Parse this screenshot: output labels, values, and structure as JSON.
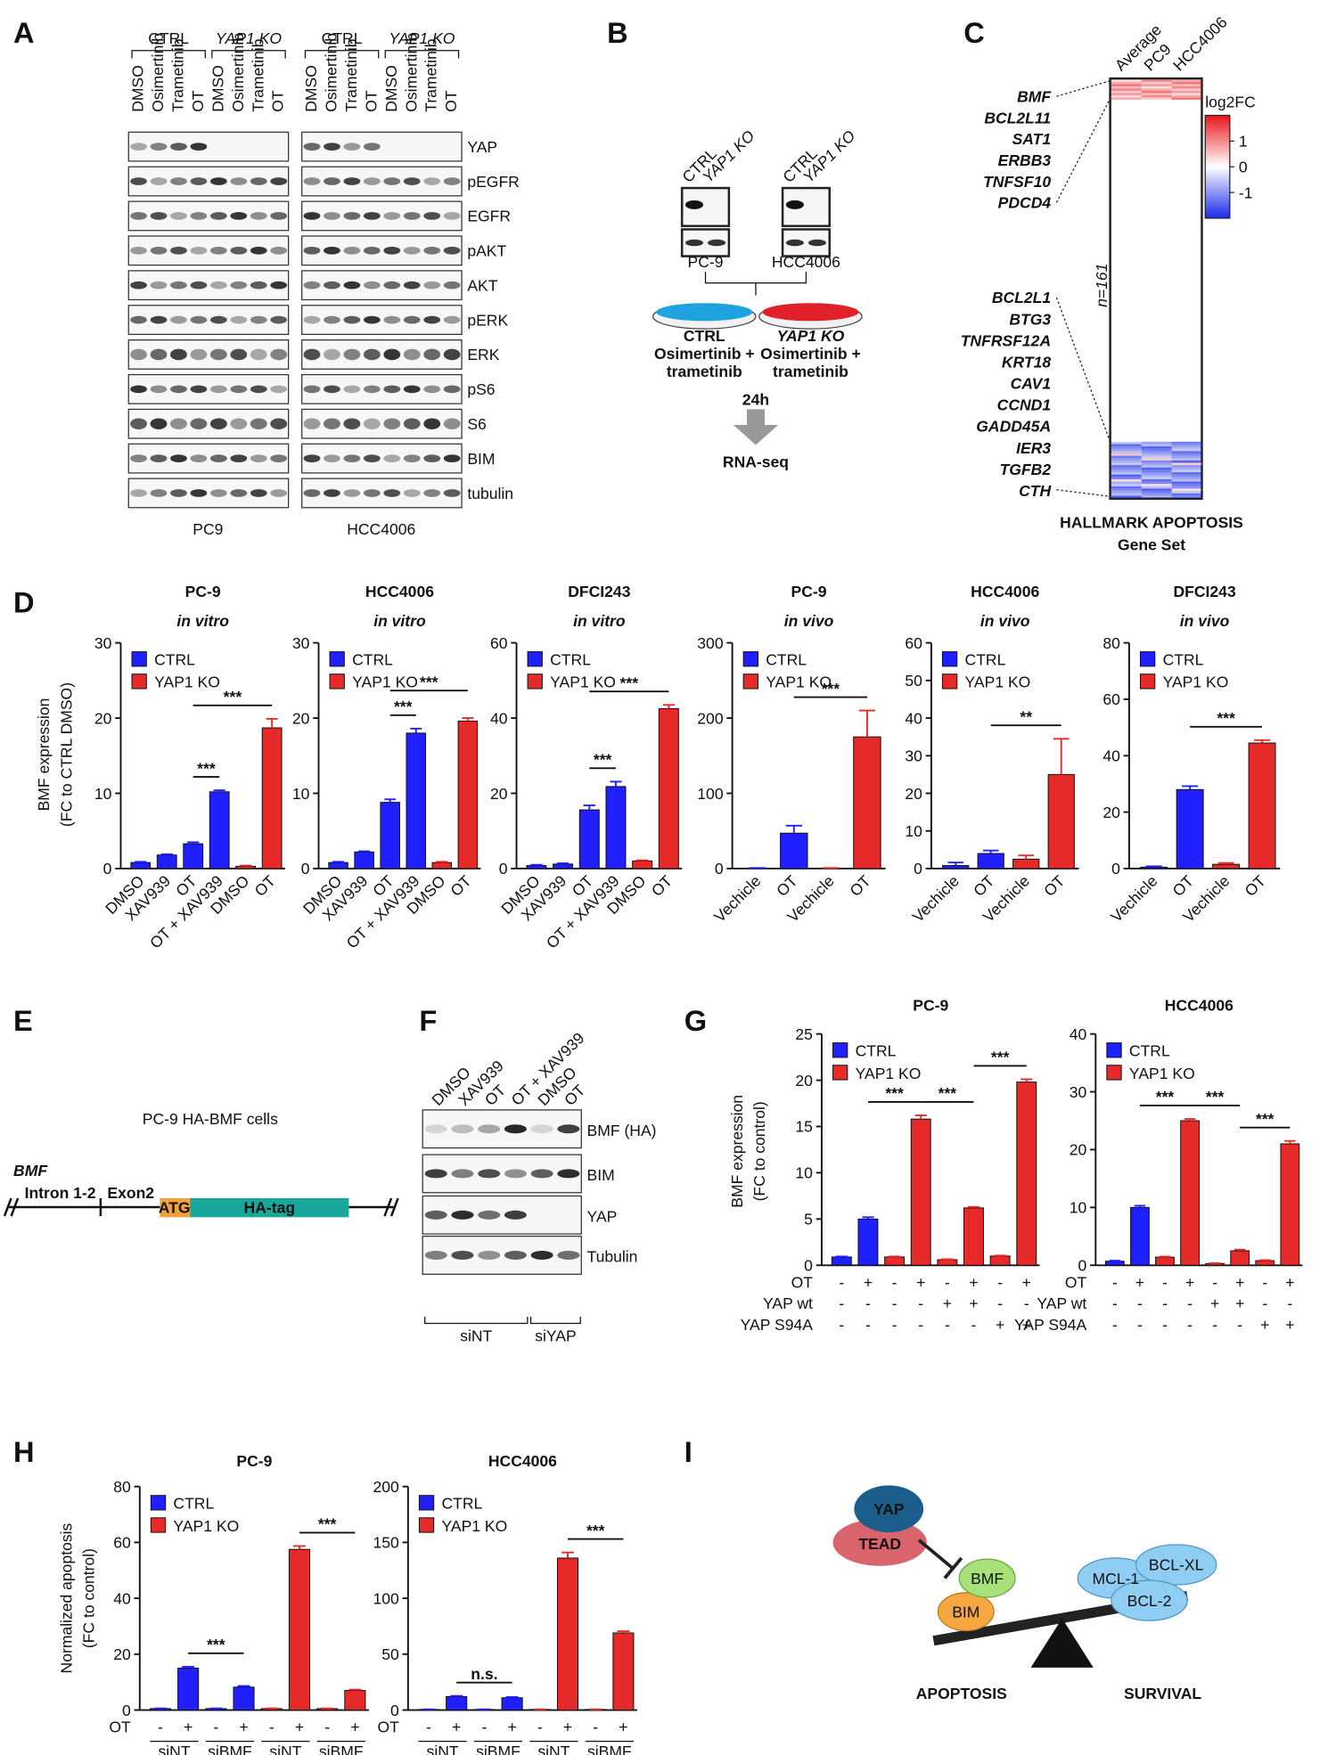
{
  "panel_labels": [
    "A",
    "B",
    "C",
    "D",
    "E",
    "F",
    "G",
    "H",
    "I"
  ],
  "panel_a": {
    "groups": [
      "CTRL",
      "YAP1 KO"
    ],
    "lanes": [
      "DMSO",
      "Osimertinib",
      "Trametinib",
      "OT"
    ],
    "proteins": [
      "YAP",
      "pEGFR",
      "EGFR",
      "pAKT",
      "AKT",
      "pERK",
      "ERK",
      "pS6",
      "S6",
      "BIM",
      "tubulin"
    ],
    "cell_lines": [
      "PC9",
      "HCC4006"
    ]
  },
  "panel_b": {
    "lanes": [
      "CTRL",
      "YAP1 KO"
    ],
    "cell_lines": [
      "PC-9",
      "HCC4006"
    ],
    "conditions": [
      {
        "group": "CTRL",
        "treatment": [
          "Osimertinib +",
          "trametinib"
        ]
      },
      {
        "group": "YAP1 KO",
        "treatment": [
          "Osimertinib +",
          "trametinib"
        ]
      }
    ],
    "time": "24h",
    "assay": "RNA-seq"
  },
  "panel_c": {
    "columns": [
      "Average",
      "PC9",
      "HCC4006"
    ],
    "genes_top": [
      "BMF",
      "BCL2L11",
      "SAT1",
      "ERBB3",
      "TNFSF10",
      "PDCD4"
    ],
    "genes_bottom": [
      "BCL2L1",
      "BTG3",
      "TNFRSF12A",
      "KRT18",
      "CAV1",
      "CCND1",
      "GADD45A",
      "IER3",
      "TGFB2",
      "CTH"
    ],
    "legend_title": "log2FC",
    "legend_lim": [
      -2,
      2
    ],
    "legend_ticks": [
      1,
      0,
      -1
    ],
    "n": "n=161",
    "caption": [
      "HALLMARK APOPTOSIS",
      "Gene Set"
    ]
  },
  "panel_e": {
    "title": "PC-9 HA-BMF cells",
    "gene": "BMF",
    "segments": [
      "Intron 1-2",
      "Exon2",
      "ATG",
      "HA-tag"
    ]
  },
  "panel_f": {
    "lanes": [
      "DMSO",
      "XAV939",
      "OT",
      "OT + XAV939",
      "DMSO",
      "OT"
    ],
    "proteins": [
      "BMF (HA)",
      "BIM",
      "YAP",
      "Tubulin"
    ],
    "groups": [
      "siNT",
      "siYAP"
    ]
  },
  "panel_i": {
    "nodes": [
      "YAP",
      "TEAD",
      "BMF",
      "BIM",
      "MCL-1",
      "BCL-XL",
      "BCL-2"
    ],
    "labels": [
      "APOPTOSIS",
      "SURVIVAL"
    ]
  },
  "chart_data": [
    {
      "type": "bar",
      "title": "PC-9",
      "subtitle": "in vitro",
      "ylabel": [
        "BMF expression",
        "(FC to CTRL DMSO)"
      ],
      "categories": [
        "DMSO",
        "XAV939",
        "OT",
        "OT + XAV939",
        "DMSO",
        "OT"
      ],
      "series": [
        {
          "name": "CTRL",
          "color": "#1f1fff",
          "values": [
            0.8,
            1.8,
            3.3,
            10.2,
            null,
            null
          ],
          "errors": [
            0.1,
            0.1,
            0.2,
            0.2,
            null,
            null
          ]
        },
        {
          "name": "YAP1 KO",
          "color": "#e62a2a",
          "values": [
            null,
            null,
            null,
            null,
            0.3,
            18.7
          ],
          "errors": [
            null,
            null,
            null,
            null,
            0.1,
            1.2
          ]
        }
      ],
      "ylim": [
        0,
        30
      ],
      "yticks": [
        0,
        10,
        20,
        30
      ],
      "annotations": [
        {
          "text": "***",
          "from": 2,
          "to": 3
        },
        {
          "text": "***",
          "from": 2,
          "to": 5
        }
      ]
    },
    {
      "type": "bar",
      "title": "HCC4006",
      "subtitle": "in vitro",
      "categories": [
        "DMSO",
        "XAV939",
        "OT",
        "OT + XAV939",
        "DMSO",
        "OT"
      ],
      "series": [
        {
          "name": "CTRL",
          "color": "#1f1fff",
          "values": [
            0.8,
            2.2,
            8.8,
            18.0,
            null,
            null
          ],
          "errors": [
            0.1,
            0.1,
            0.4,
            0.6,
            null,
            null
          ]
        },
        {
          "name": "YAP1 KO",
          "color": "#e62a2a",
          "values": [
            null,
            null,
            null,
            null,
            0.8,
            19.6
          ],
          "errors": [
            null,
            null,
            null,
            null,
            0.1,
            0.4
          ]
        }
      ],
      "ylim": [
        0,
        30
      ],
      "yticks": [
        0,
        10,
        20,
        30
      ],
      "annotations": [
        {
          "text": "***",
          "from": 2,
          "to": 3
        },
        {
          "text": "***",
          "from": 2,
          "to": 5
        }
      ]
    },
    {
      "type": "bar",
      "title": "DFCI243",
      "subtitle": "in vitro",
      "categories": [
        "DMSO",
        "XAV939",
        "OT",
        "OT + XAV939",
        "DMSO",
        "OT"
      ],
      "series": [
        {
          "name": "CTRL",
          "color": "#1f1fff",
          "values": [
            0.8,
            1.2,
            15.6,
            21.8,
            null,
            null
          ],
          "errors": [
            0.2,
            0.2,
            1.2,
            1.3,
            null,
            null
          ]
        },
        {
          "name": "YAP1 KO",
          "color": "#e62a2a",
          "values": [
            null,
            null,
            null,
            null,
            2.0,
            42.5
          ],
          "errors": [
            null,
            null,
            null,
            null,
            0.2,
            1.0
          ]
        }
      ],
      "ylim": [
        0,
        60
      ],
      "yticks": [
        0,
        20,
        40,
        60
      ],
      "annotations": [
        {
          "text": "***",
          "from": 2,
          "to": 3
        },
        {
          "text": "***",
          "from": 2,
          "to": 5
        }
      ]
    },
    {
      "type": "bar",
      "title": "PC-9",
      "subtitle": "in vivo",
      "categories": [
        "Vechicle",
        "OT",
        "Vechicle",
        "OT"
      ],
      "series": [
        {
          "name": "CTRL",
          "color": "#1f1fff",
          "values": [
            0.5,
            47,
            null,
            null
          ],
          "errors": [
            0.3,
            10,
            null,
            null
          ]
        },
        {
          "name": "YAP1 KO",
          "color": "#e62a2a",
          "values": [
            null,
            null,
            0.5,
            175
          ],
          "errors": [
            null,
            null,
            0.3,
            35
          ]
        }
      ],
      "ylim": [
        0,
        300
      ],
      "yticks": [
        0,
        100,
        200,
        300
      ],
      "annotations": [
        {
          "text": "***",
          "from": 1,
          "to": 3
        }
      ]
    },
    {
      "type": "bar",
      "title": "HCC4006",
      "subtitle": "in vivo",
      "categories": [
        "Vechicle",
        "OT",
        "Vechicle",
        "OT"
      ],
      "series": [
        {
          "name": "CTRL",
          "color": "#1f1fff",
          "values": [
            0.8,
            4.0,
            null,
            null
          ],
          "errors": [
            0.8,
            0.8,
            null,
            null
          ]
        },
        {
          "name": "YAP1 KO",
          "color": "#e62a2a",
          "values": [
            null,
            null,
            2.5,
            25
          ],
          "errors": [
            null,
            null,
            1.0,
            9.5
          ]
        }
      ],
      "ylim": [
        0,
        60
      ],
      "yticks": [
        0,
        10,
        20,
        30,
        40,
        50,
        60
      ],
      "annotations": [
        {
          "text": "**",
          "from": 1,
          "to": 3
        }
      ]
    },
    {
      "type": "bar",
      "title": "DFCI243",
      "subtitle": "in vivo",
      "categories": [
        "Vechicle",
        "OT",
        "Vechicle",
        "OT"
      ],
      "series": [
        {
          "name": "CTRL",
          "color": "#1f1fff",
          "values": [
            0.5,
            28,
            null,
            null
          ],
          "errors": [
            0.3,
            1.2,
            null,
            null
          ]
        },
        {
          "name": "YAP1 KO",
          "color": "#e62a2a",
          "values": [
            null,
            null,
            1.5,
            44.5
          ],
          "errors": [
            null,
            null,
            0.5,
            1.0
          ]
        }
      ],
      "ylim": [
        0,
        80
      ],
      "yticks": [
        0,
        20,
        40,
        60,
        80
      ],
      "annotations": [
        {
          "text": "***",
          "from": 1,
          "to": 3
        }
      ]
    },
    {
      "type": "bar",
      "title": "PC-9",
      "ylabel": [
        "BMF expression",
        "(FC to control)"
      ],
      "series": [
        {
          "name": "CTRL",
          "color": "#1f1fff",
          "values": [
            0.9,
            5.0,
            null,
            null,
            null,
            null,
            null,
            null
          ],
          "errors": [
            0.05,
            0.2,
            null,
            null,
            null,
            null,
            null,
            null
          ]
        },
        {
          "name": "YAP1 KO",
          "color": "#e62a2a",
          "values": [
            null,
            null,
            0.9,
            15.8,
            0.6,
            6.2,
            1.0,
            19.8
          ],
          "errors": [
            null,
            null,
            0.05,
            0.4,
            0.05,
            0.1,
            0.05,
            0.3
          ]
        }
      ],
      "ylim": [
        0,
        25
      ],
      "yticks": [
        0,
        5,
        10,
        15,
        20,
        25
      ],
      "rows": [
        {
          "label": "OT",
          "values": [
            "-",
            "+",
            "-",
            "+",
            "-",
            "+",
            "-",
            "+"
          ]
        },
        {
          "label": "YAP wt",
          "values": [
            "-",
            "-",
            "-",
            "-",
            "+",
            "+",
            "-",
            "-"
          ]
        },
        {
          "label": "YAP S94A",
          "values": [
            "-",
            "-",
            "-",
            "-",
            "-",
            "-",
            "+",
            "+"
          ]
        }
      ],
      "annotations": [
        {
          "text": "***",
          "from": 1,
          "to": 3
        },
        {
          "text": "***",
          "from": 3,
          "to": 5
        },
        {
          "text": "***",
          "from": 5,
          "to": 7
        }
      ]
    },
    {
      "type": "bar",
      "title": "HCC4006",
      "series": [
        {
          "name": "CTRL",
          "color": "#1f1fff",
          "values": [
            0.7,
            10,
            null,
            null,
            null,
            null,
            null,
            null
          ],
          "errors": [
            0.1,
            0.3,
            null,
            null,
            null,
            null,
            null,
            null
          ]
        },
        {
          "name": "YAP1 KO",
          "color": "#e62a2a",
          "values": [
            null,
            null,
            1.4,
            25,
            0.3,
            2.5,
            0.8,
            21
          ],
          "errors": [
            null,
            null,
            0.1,
            0.3,
            0.05,
            0.2,
            0.1,
            0.5
          ]
        }
      ],
      "ylim": [
        0,
        40
      ],
      "yticks": [
        0,
        10,
        20,
        30,
        40
      ],
      "rows": [
        {
          "label": "OT",
          "values": [
            "-",
            "+",
            "-",
            "+",
            "-",
            "+",
            "-",
            "+"
          ]
        },
        {
          "label": "YAP wt",
          "values": [
            "-",
            "-",
            "-",
            "-",
            "+",
            "+",
            "-",
            "-"
          ]
        },
        {
          "label": "YAP S94A",
          "values": [
            "-",
            "-",
            "-",
            "-",
            "-",
            "-",
            "+",
            "+"
          ]
        }
      ],
      "annotations": [
        {
          "text": "***",
          "from": 1,
          "to": 3
        },
        {
          "text": "***",
          "from": 3,
          "to": 5
        },
        {
          "text": "***",
          "from": 5,
          "to": 7
        }
      ]
    },
    {
      "type": "bar",
      "title": "PC-9",
      "ylabel": [
        "Normalized apoptosis",
        "(FC to control)"
      ],
      "series": [
        {
          "name": "CTRL",
          "color": "#1f1fff",
          "values": [
            0.5,
            15,
            0.5,
            8.2,
            null,
            null,
            null,
            null
          ],
          "errors": [
            0.1,
            0.5,
            0.1,
            0.4,
            null,
            null,
            null,
            null
          ]
        },
        {
          "name": "YAP1 KO",
          "color": "#e62a2a",
          "values": [
            null,
            null,
            null,
            null,
            0.5,
            57.5,
            0.5,
            7.0
          ],
          "errors": [
            null,
            null,
            null,
            null,
            0.1,
            1.2,
            0.1,
            0.3
          ]
        }
      ],
      "ylim": [
        0,
        80
      ],
      "yticks": [
        0,
        20,
        40,
        60,
        80
      ],
      "rows": [
        {
          "label": "OT",
          "values": [
            "-",
            "+",
            "-",
            "+",
            "-",
            "+",
            "-",
            "+"
          ]
        }
      ],
      "groups": [
        "siNT",
        "siBMF",
        "siNT",
        "siBMF"
      ],
      "annotations": [
        {
          "text": "***",
          "from": 1,
          "to": 3
        },
        {
          "text": "***",
          "from": 5,
          "to": 7
        }
      ]
    },
    {
      "type": "bar",
      "title": "HCC4006",
      "series": [
        {
          "name": "CTRL",
          "color": "#1f1fff",
          "values": [
            0.5,
            12,
            0.5,
            11,
            null,
            null,
            null,
            null
          ],
          "errors": [
            0.1,
            0.6,
            0.1,
            0.6,
            null,
            null,
            null,
            null
          ]
        },
        {
          "name": "YAP1 KO",
          "color": "#e62a2a",
          "values": [
            null,
            null,
            null,
            null,
            0.5,
            136,
            0.5,
            69
          ],
          "errors": [
            null,
            null,
            null,
            null,
            0.1,
            5,
            0.1,
            1.5
          ]
        }
      ],
      "ylim": [
        0,
        200
      ],
      "yticks": [
        0,
        50,
        100,
        150,
        200
      ],
      "rows": [
        {
          "label": "OT",
          "values": [
            "-",
            "+",
            "-",
            "+",
            "-",
            "+",
            "-",
            "+"
          ]
        }
      ],
      "groups": [
        "siNT",
        "siBMF",
        "siNT",
        "siBMF"
      ],
      "annotations": [
        {
          "text": "n.s.",
          "from": 1,
          "to": 3
        },
        {
          "text": "***",
          "from": 5,
          "to": 7
        }
      ]
    }
  ]
}
